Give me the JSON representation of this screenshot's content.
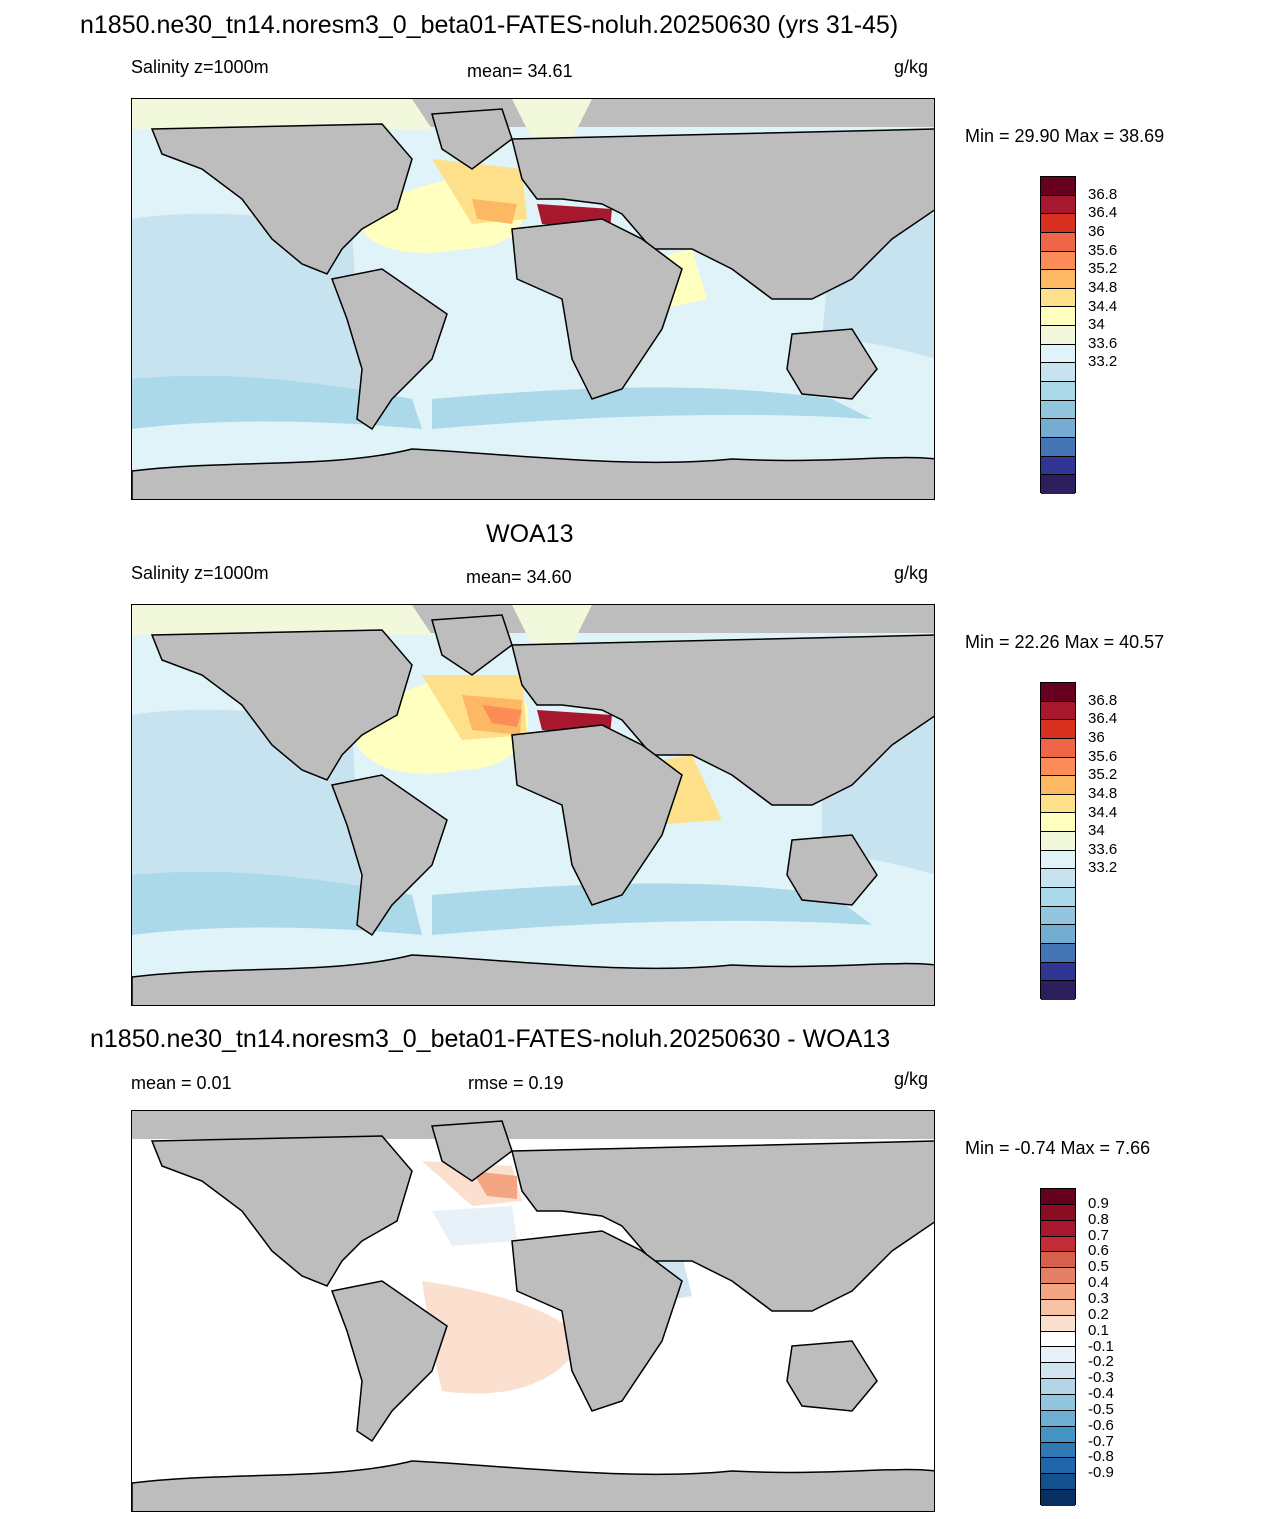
{
  "panels": [
    {
      "title": "n1850.ne30_tn14.noresm3_0_beta01-FATES-noluh.20250630 (yrs 31-45)",
      "left_label": "Salinity z=1000m",
      "center_label": "mean=  34.61",
      "units": "g/kg",
      "minmax": "Min =  29.90 Max =  38.69",
      "colorbar": {
        "colors": [
          "#67001f",
          "#a7182f",
          "#d7301f",
          "#ef6548",
          "#fc8d59",
          "#fdb863",
          "#fee08b",
          "#ffffbf",
          "#f2f8dc",
          "#e0f3f8",
          "#c6e3ef",
          "#abd9e9",
          "#92c5de",
          "#74add1",
          "#4575b4",
          "#313695",
          "#2d1e5e"
        ],
        "labels": [
          "36.8",
          "36.4",
          "36",
          "35.6",
          "35.2",
          "34.8",
          "34.4",
          "34",
          "33.6",
          "33.2"
        ]
      }
    },
    {
      "title": "WOA13",
      "left_label": "Salinity z=1000m",
      "center_label": "mean=  34.60",
      "units": "g/kg",
      "minmax": "Min =  22.26 Max =  40.57",
      "colorbar": {
        "colors": [
          "#67001f",
          "#a7182f",
          "#d7301f",
          "#ef6548",
          "#fc8d59",
          "#fdb863",
          "#fee08b",
          "#ffffbf",
          "#f2f8dc",
          "#e0f3f8",
          "#c6e3ef",
          "#abd9e9",
          "#92c5de",
          "#74add1",
          "#4575b4",
          "#313695",
          "#2d1e5e"
        ],
        "labels": [
          "36.8",
          "36.4",
          "36",
          "35.6",
          "35.2",
          "34.8",
          "34.4",
          "34",
          "33.6",
          "33.2"
        ]
      }
    },
    {
      "title": "n1850.ne30_tn14.noresm3_0_beta01-FATES-noluh.20250630 - WOA13",
      "left_label": "mean =   0.01",
      "center_label": "rmse =   0.19",
      "units": "g/kg",
      "minmax": "Min =  -0.74 Max =   7.66",
      "colorbar": {
        "colors": [
          "#67001f",
          "#8b0d22",
          "#a7182f",
          "#c12c35",
          "#d6604d",
          "#e48066",
          "#f4a582",
          "#f7c1a6",
          "#fbe0d0",
          "#ffffff",
          "#e8f1f8",
          "#d1e5f0",
          "#b4d5e8",
          "#92c5de",
          "#6faed3",
          "#4393c3",
          "#3079b5",
          "#2166ac",
          "#15508f",
          "#053061"
        ],
        "labels": [
          "0.9",
          "0.8",
          "0.7",
          "0.6",
          "0.5",
          "0.4",
          "0.3",
          "0.2",
          "0.1",
          "-0.1",
          "-0.2",
          "-0.3",
          "-0.4",
          "-0.5",
          "-0.6",
          "-0.7",
          "-0.8",
          "-0.9"
        ]
      }
    }
  ],
  "colors": {
    "land": "#bdbdbd",
    "coast": "#000000"
  }
}
